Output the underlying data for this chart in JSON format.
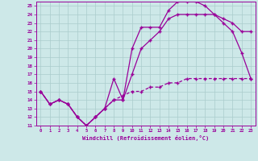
{
  "xlabel": "Windchill (Refroidissement éolien,°C)",
  "bg_color": "#cde8e8",
  "line_color": "#990099",
  "grid_color": "#aacccc",
  "xlim": [
    -0.5,
    23.5
  ],
  "ylim": [
    11,
    25.5
  ],
  "xticks": [
    0,
    1,
    2,
    3,
    4,
    5,
    6,
    7,
    8,
    9,
    10,
    11,
    12,
    13,
    14,
    15,
    16,
    17,
    18,
    19,
    20,
    21,
    22,
    23
  ],
  "yticks": [
    11,
    12,
    13,
    14,
    15,
    16,
    17,
    18,
    19,
    20,
    21,
    22,
    23,
    24,
    25
  ],
  "line1_x": [
    0,
    1,
    2,
    3,
    4,
    5,
    6,
    7,
    8,
    9,
    10,
    11,
    12,
    13,
    14,
    15,
    16,
    17,
    18,
    19,
    20,
    21,
    22,
    23
  ],
  "line1_y": [
    15,
    13.5,
    14,
    13.5,
    12,
    11,
    12,
    13,
    16.5,
    14,
    20,
    22.5,
    22.5,
    22.5,
    24.5,
    25.5,
    25.5,
    25.5,
    25,
    24,
    23,
    22,
    19.5,
    16.5
  ],
  "line2_x": [
    0,
    1,
    2,
    3,
    4,
    5,
    6,
    7,
    8,
    9,
    10,
    11,
    12,
    13,
    14,
    15,
    16,
    17,
    18,
    19,
    20,
    21,
    22,
    23
  ],
  "line2_y": [
    15,
    13.5,
    14,
    13.5,
    12,
    11,
    12,
    13,
    14,
    14,
    17,
    20,
    21,
    22,
    23.5,
    24,
    24,
    24,
    24,
    24,
    23.5,
    23,
    22,
    22
  ],
  "line3_x": [
    0,
    1,
    2,
    3,
    4,
    5,
    6,
    7,
    8,
    9,
    10,
    11,
    12,
    13,
    14,
    15,
    16,
    17,
    18,
    19,
    20,
    21,
    22,
    23
  ],
  "line3_y": [
    15,
    13.5,
    14,
    13.5,
    12,
    11,
    12,
    13,
    14,
    14.5,
    15,
    15,
    15.5,
    15.5,
    16,
    16,
    16.5,
    16.5,
    16.5,
    16.5,
    16.5,
    16.5,
    16.5,
    16.5
  ]
}
